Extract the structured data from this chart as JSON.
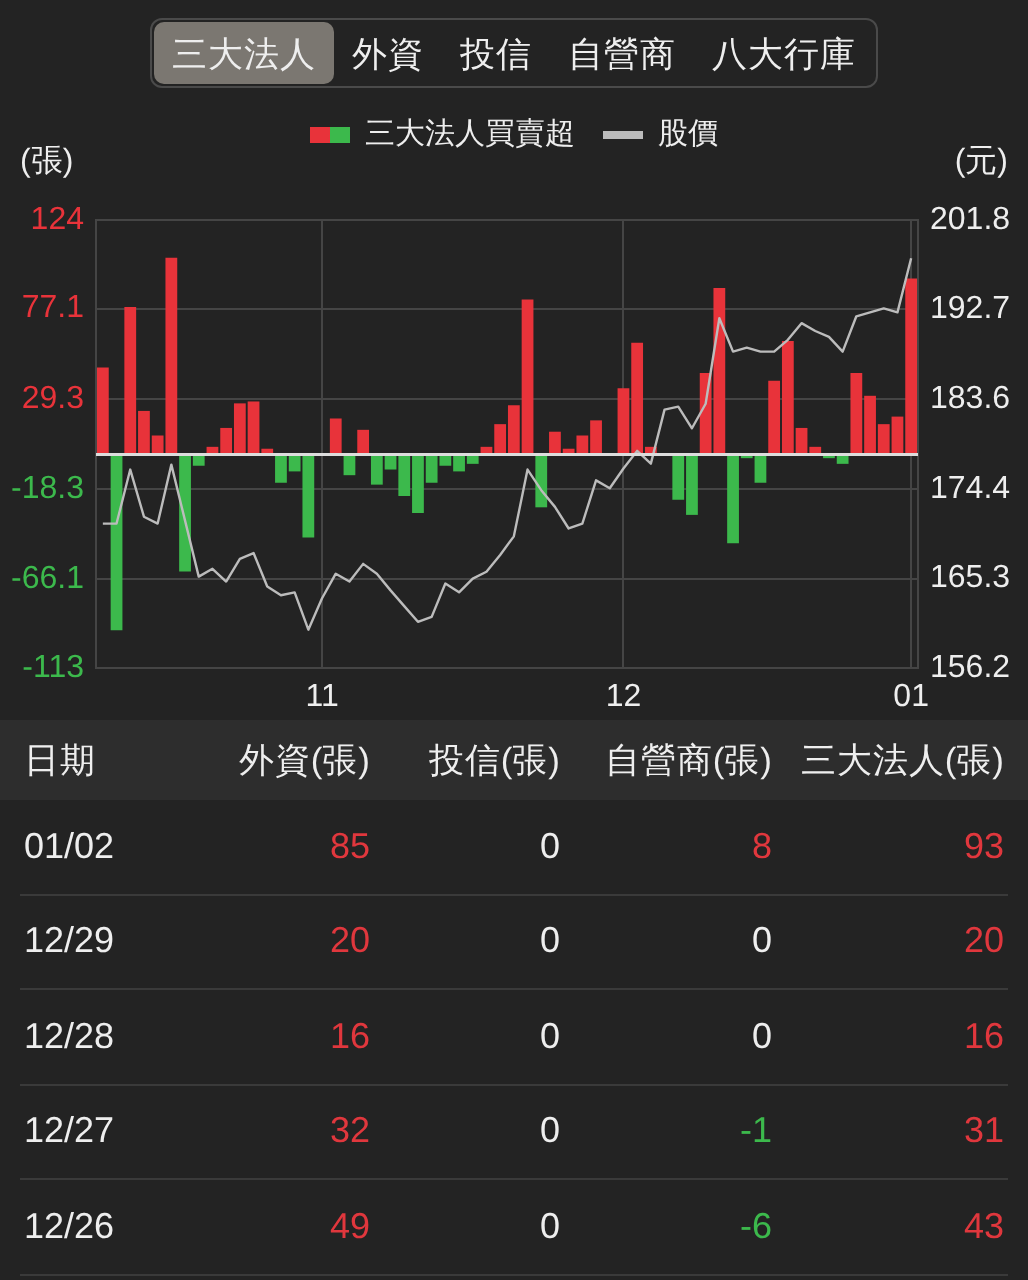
{
  "chart_data": [
    {
      "type": "bar",
      "annotations": [
        "三大法人",
        "外資",
        "投信",
        "自營商",
        "八大行庫"
      ],
      "ylabel": "(張)",
      "y2label": "(元)",
      "categories": [
        null,
        null,
        null,
        null,
        null,
        null,
        null,
        null,
        null,
        null,
        null,
        null,
        null,
        null,
        null,
        null,
        "11",
        null,
        null,
        null,
        null,
        null,
        null,
        null,
        null,
        null,
        null,
        null,
        null,
        null,
        null,
        null,
        null,
        null,
        null,
        null,
        null,
        null,
        "12",
        null,
        null,
        null,
        null,
        null,
        null,
        null,
        null,
        null,
        null,
        null,
        null,
        null,
        null,
        null,
        null,
        null,
        null,
        null,
        null,
        "01"
      ],
      "series": [
        {
          "name": "三大法人買賣超",
          "type": "bar",
          "values": [
            46,
            -93,
            78,
            23,
            10,
            104,
            -62,
            -6,
            4,
            14,
            27,
            28,
            3,
            -15,
            -9,
            -44,
            0,
            19,
            -11,
            13,
            -16,
            -8,
            -22,
            -31,
            -15,
            -6,
            -9,
            -5,
            4,
            16,
            26,
            82,
            -28,
            12,
            3,
            10,
            18,
            0,
            35,
            59,
            4,
            0,
            -24,
            -32,
            43,
            88,
            -47,
            -2,
            -15,
            39,
            60,
            14,
            4,
            -2,
            -5,
            43,
            31,
            16,
            20,
            93
          ],
          "colors": [
            "#e8333a",
            "#3cb94c",
            "#e8333a",
            "#e8333a",
            "#e8333a",
            "#e8333a",
            "#3cb94c",
            "#3cb94c",
            "#e8333a",
            "#e8333a",
            "#e8333a",
            "#e8333a",
            "#e8333a",
            "#3cb94c",
            "#3cb94c",
            "#3cb94c",
            "#e8333a",
            "#e8333a",
            "#3cb94c",
            "#e8333a",
            "#3cb94c",
            "#3cb94c",
            "#3cb94c",
            "#3cb94c",
            "#3cb94c",
            "#3cb94c",
            "#3cb94c",
            "#3cb94c",
            "#e8333a",
            "#e8333a",
            "#e8333a",
            "#e8333a",
            "#3cb94c",
            "#e8333a",
            "#e8333a",
            "#e8333a",
            "#e8333a",
            "#e8333a",
            "#e8333a",
            "#e8333a",
            "#e8333a",
            "#e8333a",
            "#3cb94c",
            "#3cb94c",
            "#e8333a",
            "#e8333a",
            "#3cb94c",
            "#3cb94c",
            "#3cb94c",
            "#e8333a",
            "#e8333a",
            "#e8333a",
            "#e8333a",
            "#3cb94c",
            "#3cb94c",
            "#e8333a",
            "#e8333a",
            "#e8333a",
            "#e8333a",
            "#e8333a"
          ]
        },
        {
          "name": "股價",
          "type": "line",
          "axis": "y2",
          "color": "#bcbcbc",
          "values": [
            170.9,
            170.9,
            176.4,
            171.6,
            170.9,
            176.9,
            171.2,
            165.5,
            166.3,
            165.0,
            167.3,
            167.9,
            164.5,
            163.6,
            163.9,
            160.1,
            163.3,
            165.8,
            165.0,
            166.8,
            165.8,
            164.1,
            162.5,
            160.9,
            161.4,
            164.8,
            163.9,
            165.3,
            166.0,
            167.7,
            169.6,
            176.4,
            174.3,
            172.6,
            170.4,
            170.9,
            175.3,
            174.5,
            176.5,
            178.3,
            177.0,
            182.5,
            182.8,
            180.6,
            183.1,
            191.8,
            188.4,
            188.8,
            188.4,
            188.4,
            189.6,
            191.3,
            190.5,
            189.9,
            188.4,
            192.0,
            192.4,
            192.8,
            192.4,
            197.9
          ]
        }
      ],
      "marker": "none",
      "ylim": [
        -113,
        124
      ],
      "yticks": [
        124,
        77.1,
        29.3,
        -18.3,
        -66.1,
        -113
      ],
      "y2lim": [
        156.2,
        201.8
      ],
      "y2ticks": [
        201.8,
        192.7,
        183.6,
        174.4,
        165.3,
        156.2
      ],
      "grid": true,
      "legend": "top",
      "ref_lines": [
        {
          "axis": "y",
          "value": 0,
          "color": "#dddddd"
        }
      ]
    },
    {
      "type": "other",
      "xlabel": "日期",
      "categories": [
        "01/02",
        "12/29",
        "12/28",
        "12/27",
        "12/26"
      ],
      "series": [
        {
          "name": "外資(張)",
          "values": [
            85,
            20,
            16,
            32,
            49
          ],
          "colors": [
            "#e0373d",
            "#e0373d",
            "#e0373d",
            "#e0373d",
            "#e0373d"
          ]
        },
        {
          "name": "投信(張)",
          "values": [
            0,
            0,
            0,
            0,
            0
          ],
          "colors": [
            "#eeeeee",
            "#eeeeee",
            "#eeeeee",
            "#eeeeee",
            "#eeeeee"
          ]
        },
        {
          "name": "自營商(張)",
          "values": [
            8,
            0,
            0,
            -1,
            -6
          ],
          "colors": [
            "#e0373d",
            "#eeeeee",
            "#eeeeee",
            "#3cb94c",
            "#3cb94c"
          ]
        },
        {
          "name": "三大法人(張)",
          "values": [
            93,
            20,
            16,
            31,
            43
          ],
          "colors": [
            "#e0373d",
            "#e0373d",
            "#e0373d",
            "#e0373d",
            "#e0373d"
          ]
        }
      ],
      "data_labels": true
    }
  ]
}
